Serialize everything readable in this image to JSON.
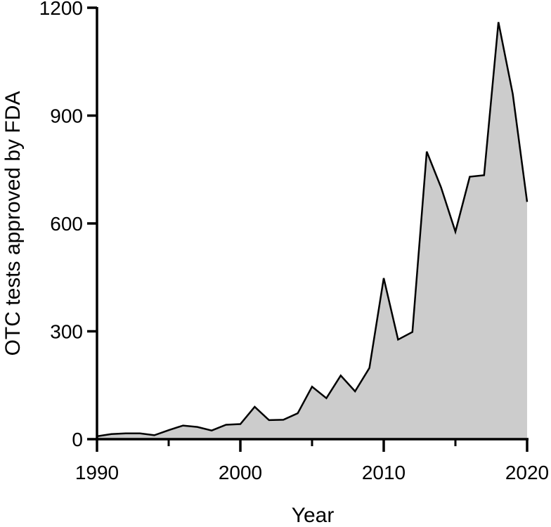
{
  "chart_data": {
    "type": "area",
    "xlabel": "Year",
    "ylabel": "OTC tests approved by FDA",
    "xlim": [
      1990,
      2020
    ],
    "ylim": [
      0,
      1200
    ],
    "xticks": [
      1990,
      2000,
      2010,
      2020
    ],
    "yticks": [
      0,
      300,
      600,
      900,
      1200
    ],
    "x_tick_labels": [
      "1990",
      "2000",
      "2010",
      "2020"
    ],
    "y_tick_labels": [
      "0",
      "300",
      "600",
      "900",
      "1200"
    ],
    "grid": false,
    "series": [
      {
        "x": [
          1990,
          1991,
          1992,
          1993,
          1994,
          1995,
          1996,
          1997,
          1998,
          1999,
          2000,
          2001,
          2002,
          2003,
          2004,
          2005,
          2006,
          2007,
          2008,
          2009,
          2010,
          2011,
          2012,
          2013,
          2014,
          2015,
          2016,
          2017,
          2018,
          2019,
          2020
        ],
        "values": [
          8,
          14,
          16,
          16,
          11,
          25,
          38,
          34,
          24,
          40,
          42,
          90,
          53,
          54,
          72,
          146,
          114,
          177,
          133,
          198,
          448,
          277,
          298,
          800,
          700,
          577,
          730,
          734,
          1160,
          960,
          660
        ]
      }
    ],
    "colors": {
      "fill": "#cccccc",
      "line": "#000000",
      "axis": "#000000"
    }
  }
}
